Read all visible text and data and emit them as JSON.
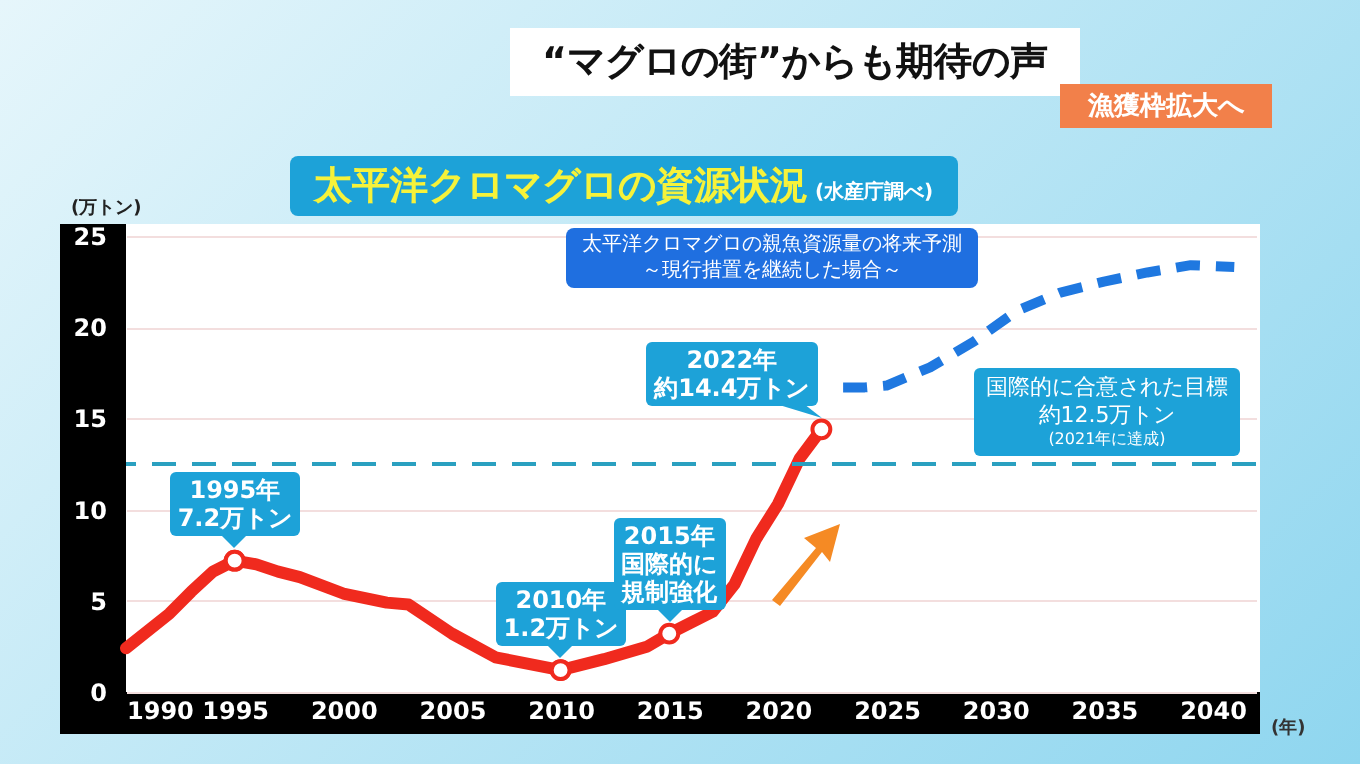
{
  "chart_data": {
    "type": "line",
    "title": "太平洋クロマグロの資源状況",
    "subtitle": "(水産庁調べ)",
    "xlabel": "(年)",
    "ylabel": "(万トン)",
    "xlim": [
      1990,
      2042
    ],
    "xticks": [
      1990,
      1995,
      2000,
      2005,
      2010,
      2015,
      2020,
      2025,
      2030,
      2035,
      2040
    ],
    "ylim": [
      0,
      25
    ],
    "yticks": [
      0,
      5,
      10,
      15,
      20,
      25
    ],
    "grid": "y",
    "series": [
      {
        "color": "#f02a1e",
        "line_style": "solid",
        "x": [
          1990,
          1992,
          1993,
          1994,
          1995,
          1996,
          1997,
          1998,
          2000,
          2002,
          2003,
          2005,
          2007,
          2010,
          2012,
          2014,
          2015,
          2016,
          2017,
          2018,
          2019,
          2020,
          2021,
          2022
        ],
        "values": [
          2.4,
          4.3,
          5.5,
          6.6,
          7.2,
          7.0,
          6.6,
          6.3,
          5.4,
          4.9,
          4.8,
          3.2,
          1.9,
          1.2,
          1.8,
          2.5,
          3.2,
          3.8,
          4.4,
          5.9,
          8.4,
          10.3,
          12.8,
          14.4
        ]
      },
      {
        "color": "#1f78e0",
        "line_style": "dashed",
        "x": [
          2023,
          2024,
          2025,
          2027,
          2029,
          2031,
          2033,
          2035,
          2037,
          2039,
          2041
        ],
        "values": [
          16.7,
          16.7,
          16.8,
          17.8,
          19.2,
          20.9,
          21.9,
          22.5,
          23.0,
          23.4,
          23.3
        ]
      }
    ],
    "ref_lines": [
      {
        "axis": "y",
        "value": 12.5,
        "label": "国際的に合意された目標約12.5万トン",
        "color": "#2aa0c0",
        "line_style": "dashed"
      }
    ],
    "annotations": [
      "“マグロの街”からも期待の声",
      "漁獲枠拡大へ",
      "太平洋クロマグロの親魚資源量の将来予測",
      "～現行措置を継続した場合～",
      "(2021年に達成)",
      {
        "text": "1995年",
        "x": 1995,
        "y": 7.2
      },
      {
        "text": "7.2万トン",
        "x": 1995,
        "y": 7.2
      },
      {
        "text": "2010年",
        "x": 2010,
        "y": 1.2
      },
      {
        "text": "1.2万トン",
        "x": 2010,
        "y": 1.2
      },
      "2015年",
      {
        "text": "国際的に規制強化",
        "x": 2015,
        "y": 3.2
      },
      "2022年",
      {
        "text": "約14.4万トン",
        "x": 2022,
        "y": 14.4
      }
    ]
  }
}
